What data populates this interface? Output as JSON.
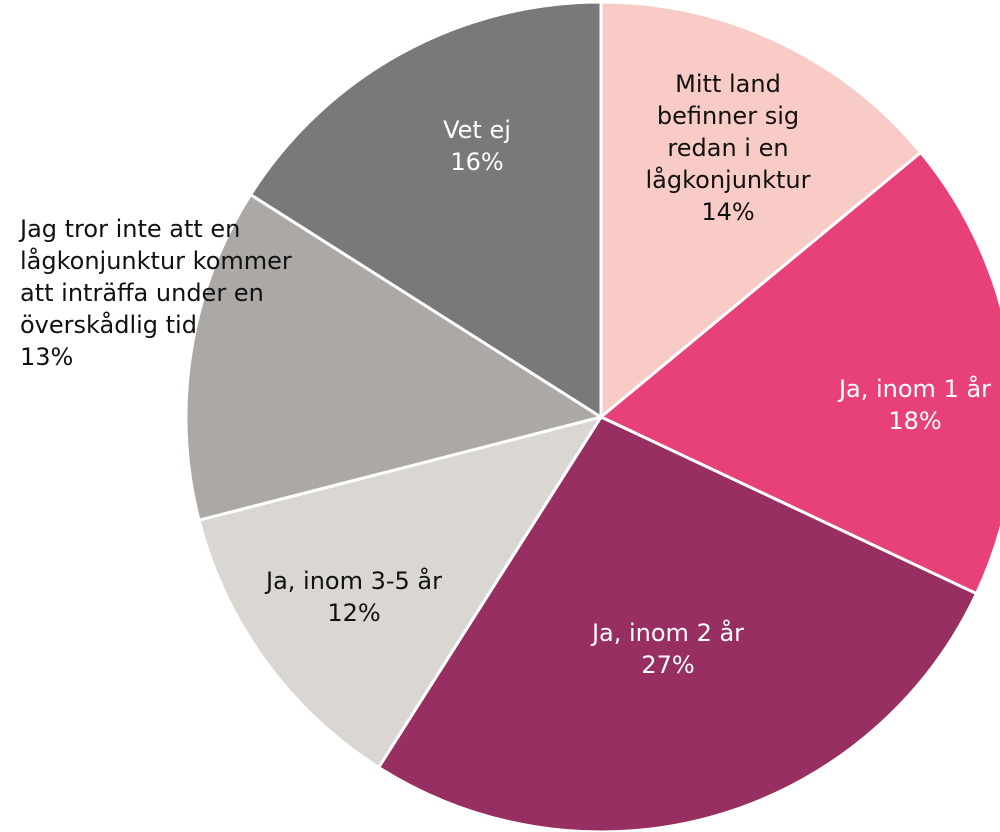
{
  "chart_data": {
    "type": "pie",
    "categories": [
      "Mitt land befinner sig redan i en lågkonjunktur",
      "Ja, inom 1 år",
      "Ja, inom 2 år",
      "Ja, inom 3-5 år",
      "Jag tror inte att en lågkonjunktur kommer att inträffa under en överskådlig tid",
      "Vet ej"
    ],
    "values": [
      14,
      18,
      27,
      12,
      13,
      16
    ],
    "value_labels": [
      "14%",
      "18%",
      "27%",
      "12%",
      "13%",
      "16%"
    ],
    "colors": [
      "#f9cbc6",
      "#e8417a",
      "#982f62",
      "#dad7d3",
      "#aca8a5",
      "#7a7879"
    ]
  }
}
